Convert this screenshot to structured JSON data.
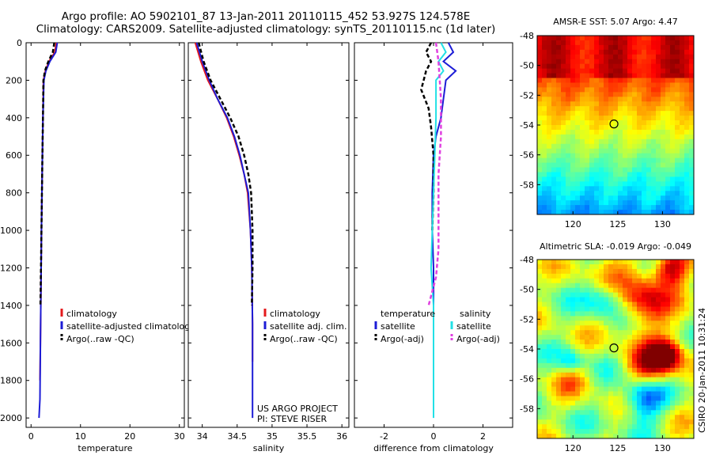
{
  "header": {
    "title_line1": "Argo profile: AO 5902101_87 13-Jan-2011 20110115_452 53.927S 124.578E",
    "title_line2": "Climatology: CARS2009. Satellite-adjusted climatology: synTS_20110115.nc (1d later)"
  },
  "stamp": "CSIRO 20-Jan-2011 10:31:24",
  "colors": {
    "red": "#e41a1c",
    "blue": "#1c1cd6",
    "black": "#000000",
    "cyan": "#22e0e6",
    "magenta": "#e040e0"
  },
  "chart_data": [
    {
      "type": "line",
      "id": "temperature",
      "xlabel": "temperature",
      "ylabel": "",
      "xlim": [
        -1,
        31
      ],
      "ylim": [
        2050,
        0
      ],
      "xticks": [
        0,
        10,
        20,
        30
      ],
      "yticks": [
        0,
        200,
        400,
        600,
        800,
        1000,
        1200,
        1400,
        1600,
        1800,
        2000
      ],
      "y_reversed": true,
      "series": [
        {
          "name": "climatology",
          "color": "red",
          "dash": "solid",
          "x": [
            5.1,
            4.8,
            3.6,
            2.9,
            2.5,
            2.4,
            2.3,
            2.2,
            2.1,
            2.0,
            1.9,
            1.8
          ],
          "y": [
            0,
            50,
            100,
            150,
            200,
            400,
            600,
            800,
            1000,
            1300,
            1600,
            1800
          ]
        },
        {
          "name": "satellite-adjusted climatology",
          "color": "blue",
          "dash": "solid",
          "x": [
            5.3,
            5.0,
            3.8,
            3.0,
            2.6,
            2.4,
            2.3,
            2.2,
            2.1,
            2.0,
            1.9,
            1.8,
            1.6
          ],
          "y": [
            0,
            50,
            100,
            150,
            200,
            400,
            600,
            800,
            1000,
            1300,
            1600,
            1900,
            2000
          ]
        },
        {
          "name": "Argo(..raw -QC)",
          "color": "black",
          "dash": "dash",
          "x": [
            4.7,
            4.4,
            3.5,
            2.8,
            2.5,
            2.4,
            2.3,
            2.2,
            2.1,
            2.0,
            1.9
          ],
          "y": [
            0,
            50,
            100,
            150,
            200,
            400,
            600,
            800,
            1000,
            1200,
            1400
          ]
        }
      ],
      "legend": {
        "placement": "lower-right",
        "entries": [
          {
            "label": "climatology",
            "color": "red",
            "dash": "solid"
          },
          {
            "label": "satellite-adjusted climatology",
            "color": "blue",
            "dash": "solid"
          },
          {
            "label": "Argo(..raw -QC)",
            "color": "black",
            "dash": "dash"
          }
        ]
      }
    },
    {
      "type": "line",
      "id": "salinity",
      "xlabel": "salinity",
      "ylabel": "",
      "xlim": [
        33.8,
        36.1
      ],
      "ylim": [
        2050,
        0
      ],
      "xticks": [
        34,
        34.5,
        35,
        35.5,
        36
      ],
      "yticks": [
        0,
        200,
        400,
        600,
        800,
        1000,
        1200,
        1400,
        1600,
        1800,
        2000
      ],
      "y_reversed": true,
      "series": [
        {
          "name": "climatology",
          "color": "red",
          "dash": "solid",
          "x": [
            33.9,
            33.98,
            34.08,
            34.22,
            34.35,
            34.45,
            34.53,
            34.6,
            34.65,
            34.69,
            34.71,
            34.72,
            34.72
          ],
          "y": [
            0,
            100,
            200,
            300,
            400,
            500,
            600,
            700,
            800,
            1000,
            1200,
            1500,
            1700
          ]
        },
        {
          "name": "satellite adj. clim.",
          "color": "blue",
          "dash": "solid",
          "x": [
            33.92,
            34.0,
            34.1,
            34.22,
            34.36,
            34.46,
            34.54,
            34.6,
            34.66,
            34.69,
            34.71,
            34.72,
            34.72,
            34.72
          ],
          "y": [
            0,
            100,
            200,
            300,
            400,
            500,
            600,
            700,
            800,
            1000,
            1200,
            1500,
            1800,
            2000
          ]
        },
        {
          "name": "Argo(..raw -QC)",
          "color": "black",
          "dash": "dash",
          "x": [
            33.95,
            34.02,
            34.12,
            34.26,
            34.4,
            34.52,
            34.6,
            34.66,
            34.7,
            34.72,
            34.72,
            34.71
          ],
          "y": [
            0,
            100,
            200,
            300,
            400,
            500,
            600,
            700,
            800,
            1000,
            1200,
            1400
          ]
        }
      ],
      "legend": {
        "placement": "lower-right",
        "entries": [
          {
            "label": "climatology",
            "color": "red",
            "dash": "solid"
          },
          {
            "label": "satellite adj. clim.",
            "color": "blue",
            "dash": "solid"
          },
          {
            "label": "Argo(..raw -QC)",
            "color": "black",
            "dash": "dash"
          }
        ]
      },
      "annotations": [
        "US ARGO PROJECT",
        "PI: STEVE RISER"
      ]
    },
    {
      "type": "line",
      "id": "difference",
      "xlabel": "difference from climatology",
      "ylabel": "",
      "xlim": [
        -3.2,
        3.2
      ],
      "ylim": [
        2050,
        0
      ],
      "xticks": [
        -2,
        0,
        2
      ],
      "yticks": [
        0,
        200,
        400,
        600,
        800,
        1000,
        1200,
        1400,
        1600,
        1800,
        2000
      ],
      "y_reversed": true,
      "series": [
        {
          "name": "temperature satellite",
          "color": "blue",
          "dash": "solid",
          "x": [
            0.6,
            0.8,
            0.4,
            0.9,
            0.5,
            0.4,
            0.3,
            0.1,
            0.0,
            -0.05,
            -0.05,
            0.0,
            0.0
          ],
          "y": [
            0,
            50,
            100,
            150,
            200,
            300,
            400,
            500,
            600,
            800,
            1000,
            1200,
            1400
          ]
        },
        {
          "name": "temperature Argo(-adj)",
          "color": "black",
          "dash": "dash",
          "x": [
            -0.1,
            -0.3,
            -0.1,
            -0.3,
            -0.5,
            -0.2,
            -0.1,
            0.0,
            0.0,
            -0.05
          ],
          "y": [
            0,
            50,
            100,
            150,
            250,
            350,
            450,
            600,
            800,
            1000
          ]
        },
        {
          "name": "salinity satellite",
          "color": "cyan",
          "dash": "solid",
          "x": [
            0.3,
            0.5,
            0.2,
            0.4,
            0.1,
            0.1,
            0.05,
            0.0,
            -0.05,
            -0.1,
            0.0,
            0.0,
            0.0,
            0.0
          ],
          "y": [
            0,
            50,
            100,
            150,
            200,
            400,
            600,
            800,
            1000,
            1200,
            1400,
            1600,
            1800,
            2000
          ]
        },
        {
          "name": "salinity Argo(-adj)",
          "color": "magenta",
          "dash": "dash",
          "x": [
            0.1,
            0.2,
            0.3,
            0.3,
            0.2,
            0.2,
            0.2,
            0.1,
            -0.1,
            -0.2
          ],
          "y": [
            0,
            100,
            300,
            500,
            700,
            900,
            1100,
            1250,
            1350,
            1400
          ]
        }
      ],
      "legend": {
        "placement": "lower-center",
        "groups": [
          {
            "title": "temperature",
            "entries": [
              {
                "label": "satellite",
                "color": "blue",
                "dash": "solid"
              },
              {
                "label": "Argo(-adj)",
                "color": "black",
                "dash": "dash"
              }
            ]
          },
          {
            "title": "salinity",
            "entries": [
              {
                "label": "satellite",
                "color": "cyan",
                "dash": "solid"
              },
              {
                "label": "Argo(-adj)",
                "color": "magenta",
                "dash": "dash"
              }
            ]
          }
        ]
      }
    },
    {
      "type": "heatmap",
      "id": "sst_map",
      "title": "AMSR-E SST: 5.07 Argo: 4.47",
      "xlim": [
        116,
        133.5
      ],
      "ylim": [
        -60,
        -48
      ],
      "xticks": [
        120,
        125,
        130
      ],
      "yticks": [
        -48,
        -50,
        -52,
        -54,
        -56,
        -58
      ],
      "colormap": "jet",
      "pattern": "warm north (top), cooling southward",
      "profile_location": {
        "lon": 124.578,
        "lat": -53.927
      }
    },
    {
      "type": "heatmap",
      "id": "sla_map",
      "title": "Altimetric SLA: -0.019 Argo: -0.049",
      "xlim": [
        116,
        133.5
      ],
      "ylim": [
        -60,
        -48
      ],
      "xticks": [
        120,
        125,
        130
      ],
      "yticks": [
        -48,
        -50,
        -52,
        -54,
        -56,
        -58
      ],
      "colormap": "jet",
      "pattern": "mottled eddy field",
      "profile_location": {
        "lon": 124.578,
        "lat": -53.927
      }
    }
  ]
}
